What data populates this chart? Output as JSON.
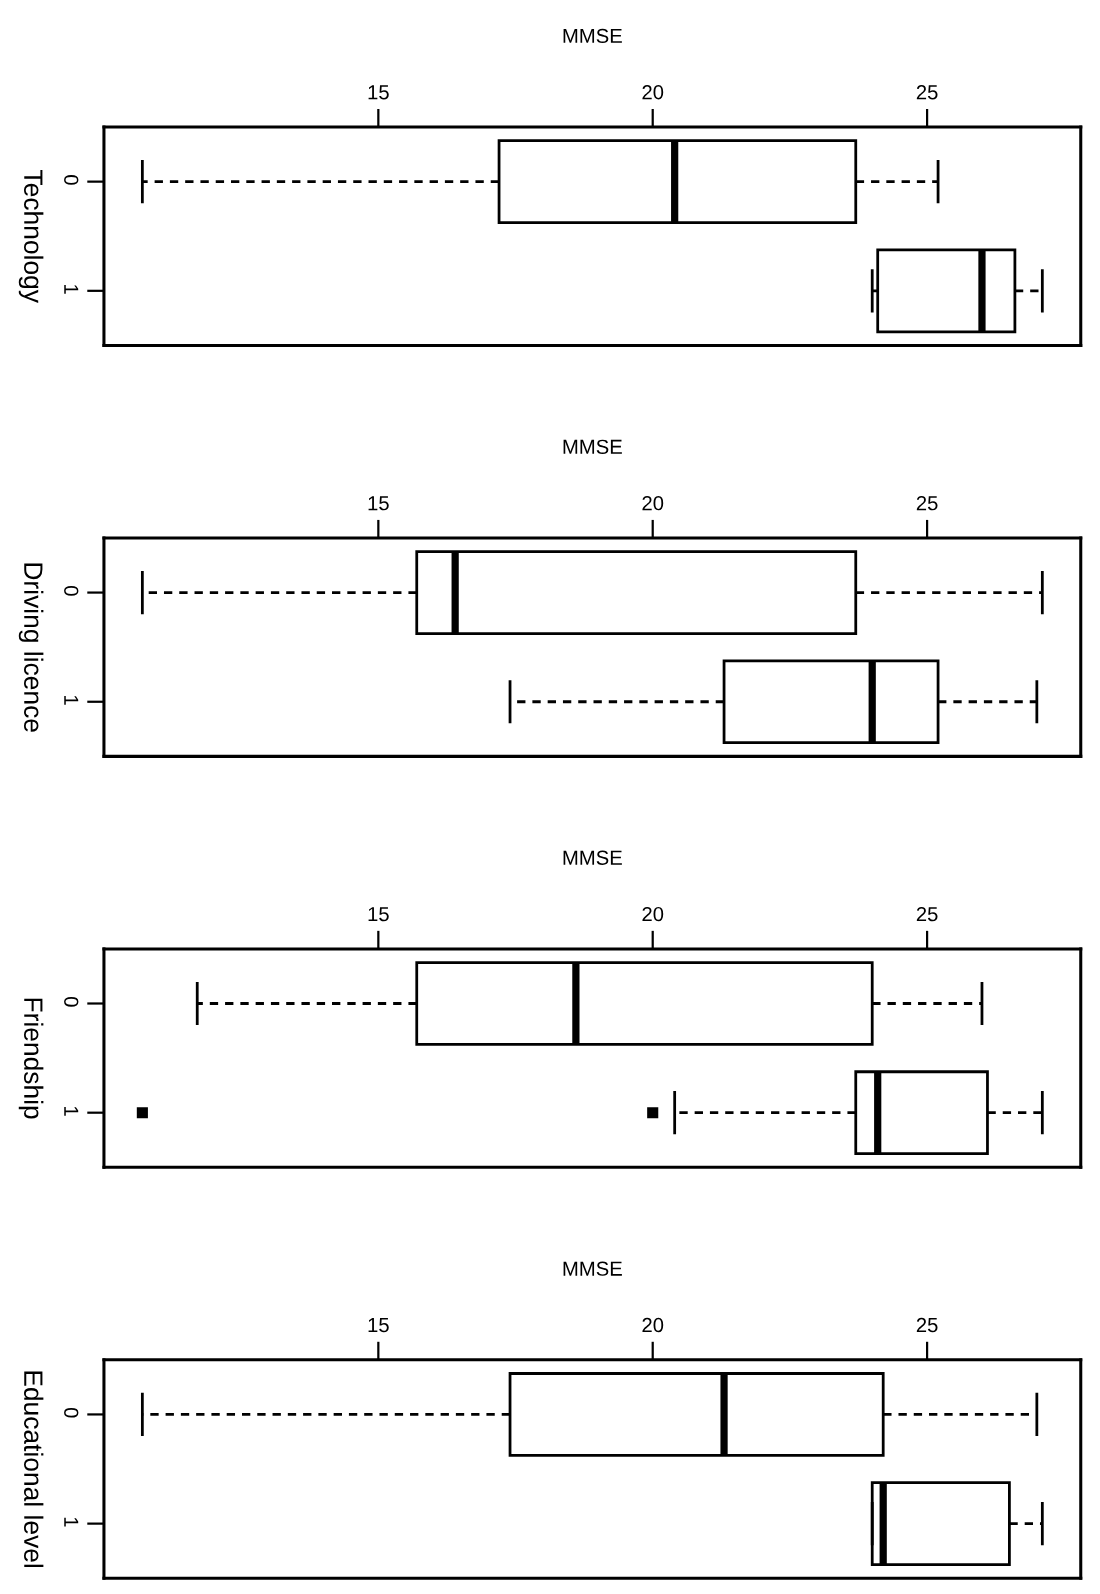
{
  "chart_data": [
    {
      "type": "box",
      "orientation": "horizontal",
      "xlabel": "MMSE",
      "ylabel": "Technology",
      "categories": [
        "0",
        "1"
      ],
      "boxes": [
        {
          "low": 10.7,
          "q1": 17.2,
          "median": 20.4,
          "q3": 23.7,
          "high": 25.2
        },
        {
          "low": 24.0,
          "q1": 24.1,
          "median": 26.0,
          "q3": 26.6,
          "high": 27.1
        }
      ],
      "xlim": [
        10.0,
        27.8
      ],
      "xticks": [
        15,
        20,
        25
      ]
    },
    {
      "type": "box",
      "orientation": "horizontal",
      "xlabel": "MMSE",
      "ylabel": "Driving licence",
      "categories": [
        "0",
        "1"
      ],
      "boxes": [
        {
          "low": 10.7,
          "q1": 15.7,
          "median": 16.4,
          "q3": 23.7,
          "high": 27.1
        },
        {
          "low": 17.4,
          "q1": 21.3,
          "median": 24.0,
          "q3": 25.2,
          "high": 27.0
        }
      ],
      "xlim": [
        10.0,
        27.8
      ],
      "xticks": [
        15,
        20,
        25
      ]
    },
    {
      "type": "box",
      "orientation": "horizontal",
      "xlabel": "MMSE",
      "ylabel": "Friendship",
      "categories": [
        "0",
        "1"
      ],
      "boxes": [
        {
          "low": 11.7,
          "q1": 15.7,
          "median": 18.6,
          "q3": 24.0,
          "high": 26.0
        },
        {
          "low": 20.4,
          "q1": 23.7,
          "median": 24.1,
          "q3": 26.1,
          "high": 27.1,
          "outliers": [
            10.7,
            20.0
          ]
        }
      ],
      "marker": "square",
      "xlim": [
        10.0,
        27.8
      ],
      "xticks": [
        15,
        20,
        25
      ]
    },
    {
      "type": "box",
      "orientation": "horizontal",
      "xlabel": "MMSE",
      "ylabel": "Educational level",
      "categories": [
        "0",
        "1"
      ],
      "boxes": [
        {
          "low": 10.7,
          "q1": 17.4,
          "median": 21.3,
          "q3": 24.2,
          "high": 27.0
        },
        {
          "low": 24.0,
          "q1": 24.0,
          "median": 24.2,
          "q3": 26.5,
          "high": 27.1
        }
      ],
      "xlim": [
        10.0,
        27.8
      ],
      "xticks": [
        15,
        20,
        25
      ]
    }
  ]
}
